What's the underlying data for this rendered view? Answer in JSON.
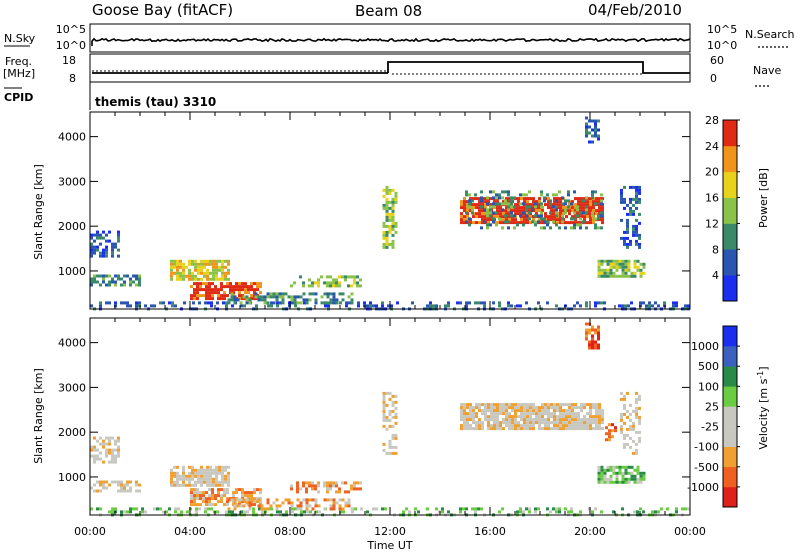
{
  "header": {
    "station": "Goose Bay (fitACF)",
    "beam": "Beam 08",
    "date": "04/Feb/2010"
  },
  "top_panels": {
    "nsky_label": "N.Sky",
    "nsky_ticks": [
      "10^5",
      "10^0"
    ],
    "nsearch_label": "N.Search",
    "nsearch_ticks": [
      "10^5",
      "10^0"
    ],
    "freq_label": "Freq.",
    "freq_unit": "[MHz]",
    "freq_ticks": [
      "18",
      "8"
    ],
    "nave_label": "Nave",
    "nave_ticks": [
      "60",
      "0"
    ],
    "cpid_label": "CPID",
    "cpid_text": "themis (tau) 3310"
  },
  "chart_data": [
    {
      "type": "heatmap",
      "name": "Power",
      "ylabel": "Slant Range [km]",
      "ylim": [
        150,
        4550
      ],
      "yticks": [
        "1000",
        "2000",
        "3000",
        "4000"
      ],
      "xlim_hours": [
        0,
        24
      ],
      "colorbar_label": "Power [dB]",
      "colorbar_ticks": [
        "4",
        "8",
        "12",
        "16",
        "20",
        "24",
        "28"
      ],
      "colors": [
        "#1a2ef0",
        "#2a55b0",
        "#3a8a6a",
        "#8bc34a",
        "#e8d21a",
        "#f0951a",
        "#e02a14"
      ],
      "regions": [
        {
          "t0": 0.0,
          "t1": 24.0,
          "r0": 180,
          "r1": 320,
          "level": 1,
          "density": 0.35
        },
        {
          "t0": 0.0,
          "t1": 1.2,
          "r0": 1300,
          "r1": 1900,
          "level": 1,
          "density": 0.5
        },
        {
          "t0": 0.0,
          "t1": 2.0,
          "r0": 680,
          "r1": 920,
          "level": 2,
          "density": 0.6
        },
        {
          "t0": 3.2,
          "t1": 5.6,
          "r0": 820,
          "r1": 1250,
          "level": 4,
          "density": 0.8
        },
        {
          "t0": 4.0,
          "t1": 6.8,
          "r0": 350,
          "r1": 750,
          "level": 6,
          "density": 0.75
        },
        {
          "t0": 5.5,
          "t1": 10.5,
          "r0": 300,
          "r1": 520,
          "level": 2,
          "density": 0.55
        },
        {
          "t0": 8.0,
          "t1": 10.8,
          "r0": 650,
          "r1": 900,
          "level": 3,
          "density": 0.5
        },
        {
          "t0": 11.7,
          "t1": 12.2,
          "r0": 1500,
          "r1": 2900,
          "level": 3,
          "density": 0.6
        },
        {
          "t0": 14.8,
          "t1": 20.5,
          "r0": 2050,
          "r1": 2650,
          "level": 6,
          "density": 0.85
        },
        {
          "t0": 15.0,
          "t1": 20.5,
          "r0": 1950,
          "r1": 2800,
          "level": 2,
          "density": 0.3
        },
        {
          "t0": 19.8,
          "t1": 20.3,
          "r0": 3900,
          "r1": 4450,
          "level": 1,
          "density": 0.5
        },
        {
          "t0": 20.3,
          "t1": 22.2,
          "r0": 850,
          "r1": 1250,
          "level": 3,
          "density": 0.75
        },
        {
          "t0": 21.2,
          "t1": 22.0,
          "r0": 1500,
          "r1": 2900,
          "level": 1,
          "density": 0.45
        }
      ]
    },
    {
      "type": "heatmap",
      "name": "Velocity",
      "ylabel": "Slant Range [km]",
      "ylim": [
        150,
        4550
      ],
      "yticks": [
        "1000",
        "2000",
        "3000",
        "4000"
      ],
      "xticks": [
        "00:00",
        "04:00",
        "08:00",
        "12:00",
        "16:00",
        "20:00",
        "00:00"
      ],
      "xlabel": "Time UT",
      "xlim_hours": [
        0,
        24
      ],
      "colorbar_label": "Velocity [m s",
      "colorbar_sup": "-1",
      "colorbar_close": "]",
      "colorbar_ticks": [
        "-1000",
        "-500",
        "-100",
        "-25",
        "25",
        "100",
        "500",
        "1000"
      ],
      "colors": [
        "#e0201a",
        "#f06020",
        "#f0a030",
        "#c8c8c0",
        "#c8c8c0",
        "#6acc40",
        "#2a8a4a",
        "#3a60c0",
        "#1a2ef0"
      ],
      "regions": [
        {
          "t0": 0.0,
          "t1": 24.0,
          "r0": 180,
          "r1": 320,
          "level": 5,
          "density": 0.35
        },
        {
          "t0": 0.0,
          "t1": 1.2,
          "r0": 1300,
          "r1": 1900,
          "level": 3,
          "density": 0.5
        },
        {
          "t0": 0.0,
          "t1": 2.0,
          "r0": 680,
          "r1": 920,
          "level": 3,
          "density": 0.6
        },
        {
          "t0": 3.2,
          "t1": 5.6,
          "r0": 820,
          "r1": 1250,
          "level": 3,
          "density": 0.8
        },
        {
          "t0": 4.0,
          "t1": 6.8,
          "r0": 350,
          "r1": 750,
          "level": 2,
          "density": 0.6
        },
        {
          "t0": 5.5,
          "t1": 10.5,
          "r0": 300,
          "r1": 520,
          "level": 2,
          "density": 0.5
        },
        {
          "t0": 8.0,
          "t1": 10.8,
          "r0": 650,
          "r1": 900,
          "level": 2,
          "density": 0.5
        },
        {
          "t0": 11.7,
          "t1": 12.2,
          "r0": 1500,
          "r1": 2900,
          "level": 3,
          "density": 0.5
        },
        {
          "t0": 14.8,
          "t1": 20.5,
          "r0": 2050,
          "r1": 2650,
          "level": 3,
          "density": 0.85
        },
        {
          "t0": 19.8,
          "t1": 20.3,
          "r0": 3900,
          "r1": 4450,
          "level": 1,
          "density": 0.55
        },
        {
          "t0": 20.3,
          "t1": 22.2,
          "r0": 850,
          "r1": 1250,
          "level": 5,
          "density": 0.75
        },
        {
          "t0": 20.6,
          "t1": 21.0,
          "r0": 1800,
          "r1": 2200,
          "level": 1,
          "density": 0.6
        },
        {
          "t0": 21.2,
          "t1": 22.0,
          "r0": 1500,
          "r1": 2900,
          "level": 3,
          "density": 0.45
        }
      ]
    }
  ]
}
